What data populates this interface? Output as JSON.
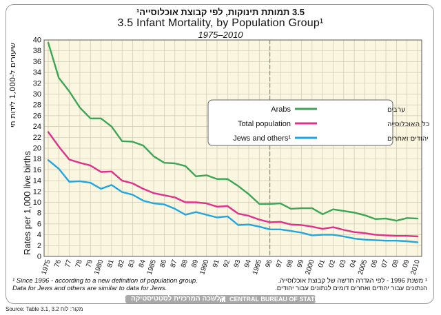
{
  "header": {
    "title_he": "3.5 תמותת תינוקות, לפי קבוצת אוכלוסייה¹",
    "title_en": "3.5 Infant Mortality, by Population Group¹",
    "subtitle": "1975–2010"
  },
  "chart_data": {
    "type": "line",
    "ylabel_en": "Rates per 1,000 live births",
    "ylabel_he": "שיעורים ל-1,000 לידות חי",
    "ylim": [
      0,
      40
    ],
    "yticks": [
      0,
      2,
      4,
      6,
      8,
      10,
      12,
      14,
      16,
      18,
      20,
      22,
      24,
      26,
      28,
      30,
      32,
      34,
      36,
      38,
      40
    ],
    "x": [
      1975,
      1976,
      1977,
      1978,
      1979,
      1980,
      1981,
      1982,
      1983,
      1984,
      1985,
      1986,
      1987,
      1988,
      1989,
      1990,
      1991,
      1992,
      1993,
      1994,
      1995,
      1996,
      1997,
      1998,
      1999,
      2000,
      2001,
      2002,
      2003,
      2004,
      2005,
      2006,
      2007,
      2008,
      2009,
      2010
    ],
    "xtick_labels": [
      "1975",
      "76",
      "77",
      "78",
      "79",
      "1980",
      "81",
      "82",
      "83",
      "84",
      "1985",
      "86",
      "87",
      "88",
      "89",
      "1990",
      "91",
      "92",
      "93",
      "94",
      "1995",
      "96",
      "97",
      "98",
      "99",
      "2000",
      "01",
      "02",
      "03",
      "04",
      "2005",
      "06",
      "07",
      "08",
      "09",
      "2010"
    ],
    "break_year": 1996,
    "grid": true,
    "legend_position": "center-right",
    "series": [
      {
        "name": "Arabs",
        "name_he": "ערבים",
        "color": "#3aa655",
        "values": [
          39.5,
          33.0,
          30.5,
          27.5,
          25.5,
          25.5,
          24.0,
          21.3,
          21.2,
          20.5,
          18.5,
          17.3,
          17.2,
          16.7,
          14.8,
          15.0,
          14.3,
          14.3,
          13.0,
          11.5,
          9.7,
          9.7,
          9.8,
          8.8,
          8.9,
          8.9,
          7.8,
          8.7,
          8.4,
          8.1,
          7.6,
          6.9,
          7.0,
          6.6,
          7.1,
          7.0
        ]
      },
      {
        "name": "Total population",
        "name_he": "כל האוכלוסייה",
        "color": "#e0308a",
        "values": [
          23.0,
          20.3,
          17.9,
          17.3,
          16.8,
          15.6,
          15.7,
          14.0,
          13.5,
          12.5,
          11.7,
          11.3,
          10.9,
          10.0,
          10.0,
          9.8,
          9.2,
          9.3,
          7.9,
          7.5,
          6.8,
          6.3,
          6.4,
          5.9,
          5.8,
          5.5,
          5.1,
          5.4,
          4.9,
          4.5,
          4.3,
          4.0,
          3.9,
          3.8,
          3.8,
          3.7
        ]
      },
      {
        "name": "Jews and others",
        "name_he": "יהודים ואחרים",
        "color": "#1fa6e0",
        "values": [
          17.8,
          16.2,
          13.8,
          13.9,
          13.6,
          12.5,
          13.2,
          11.9,
          11.4,
          10.3,
          9.8,
          9.6,
          8.8,
          7.7,
          8.2,
          7.7,
          7.2,
          7.4,
          5.8,
          5.9,
          5.5,
          5.0,
          5.0,
          4.7,
          4.4,
          3.9,
          4.0,
          4.0,
          3.7,
          3.3,
          3.1,
          3.0,
          2.9,
          2.9,
          2.8,
          2.6
        ]
      }
    ],
    "legend_superscript": "¹"
  },
  "footnotes": {
    "en_line1": "¹ Since 1996 - according to a new definition of population group.",
    "en_line2": "Data for Jews and others are similar to data for Jews.",
    "he_line1": "¹ משנת 1996 - לפי הגדרה חדשה של קבוצת אוכלוסייה.",
    "he_line2": "הנתונים עבור יהודים ואחרים דומים לנתונים עבור יהודים."
  },
  "footer": {
    "org_he": "הלשכה המרכזית לסטטיסטיקה",
    "org_en": "CENTRAL BUREAU OF STATISTICS",
    "source": "Source: Table 3.1, 3.2 מקור: לוח"
  },
  "colors": {
    "plot_background": "#fbf6e0",
    "grid": "#cfc9b4",
    "break_line": "#888888"
  }
}
